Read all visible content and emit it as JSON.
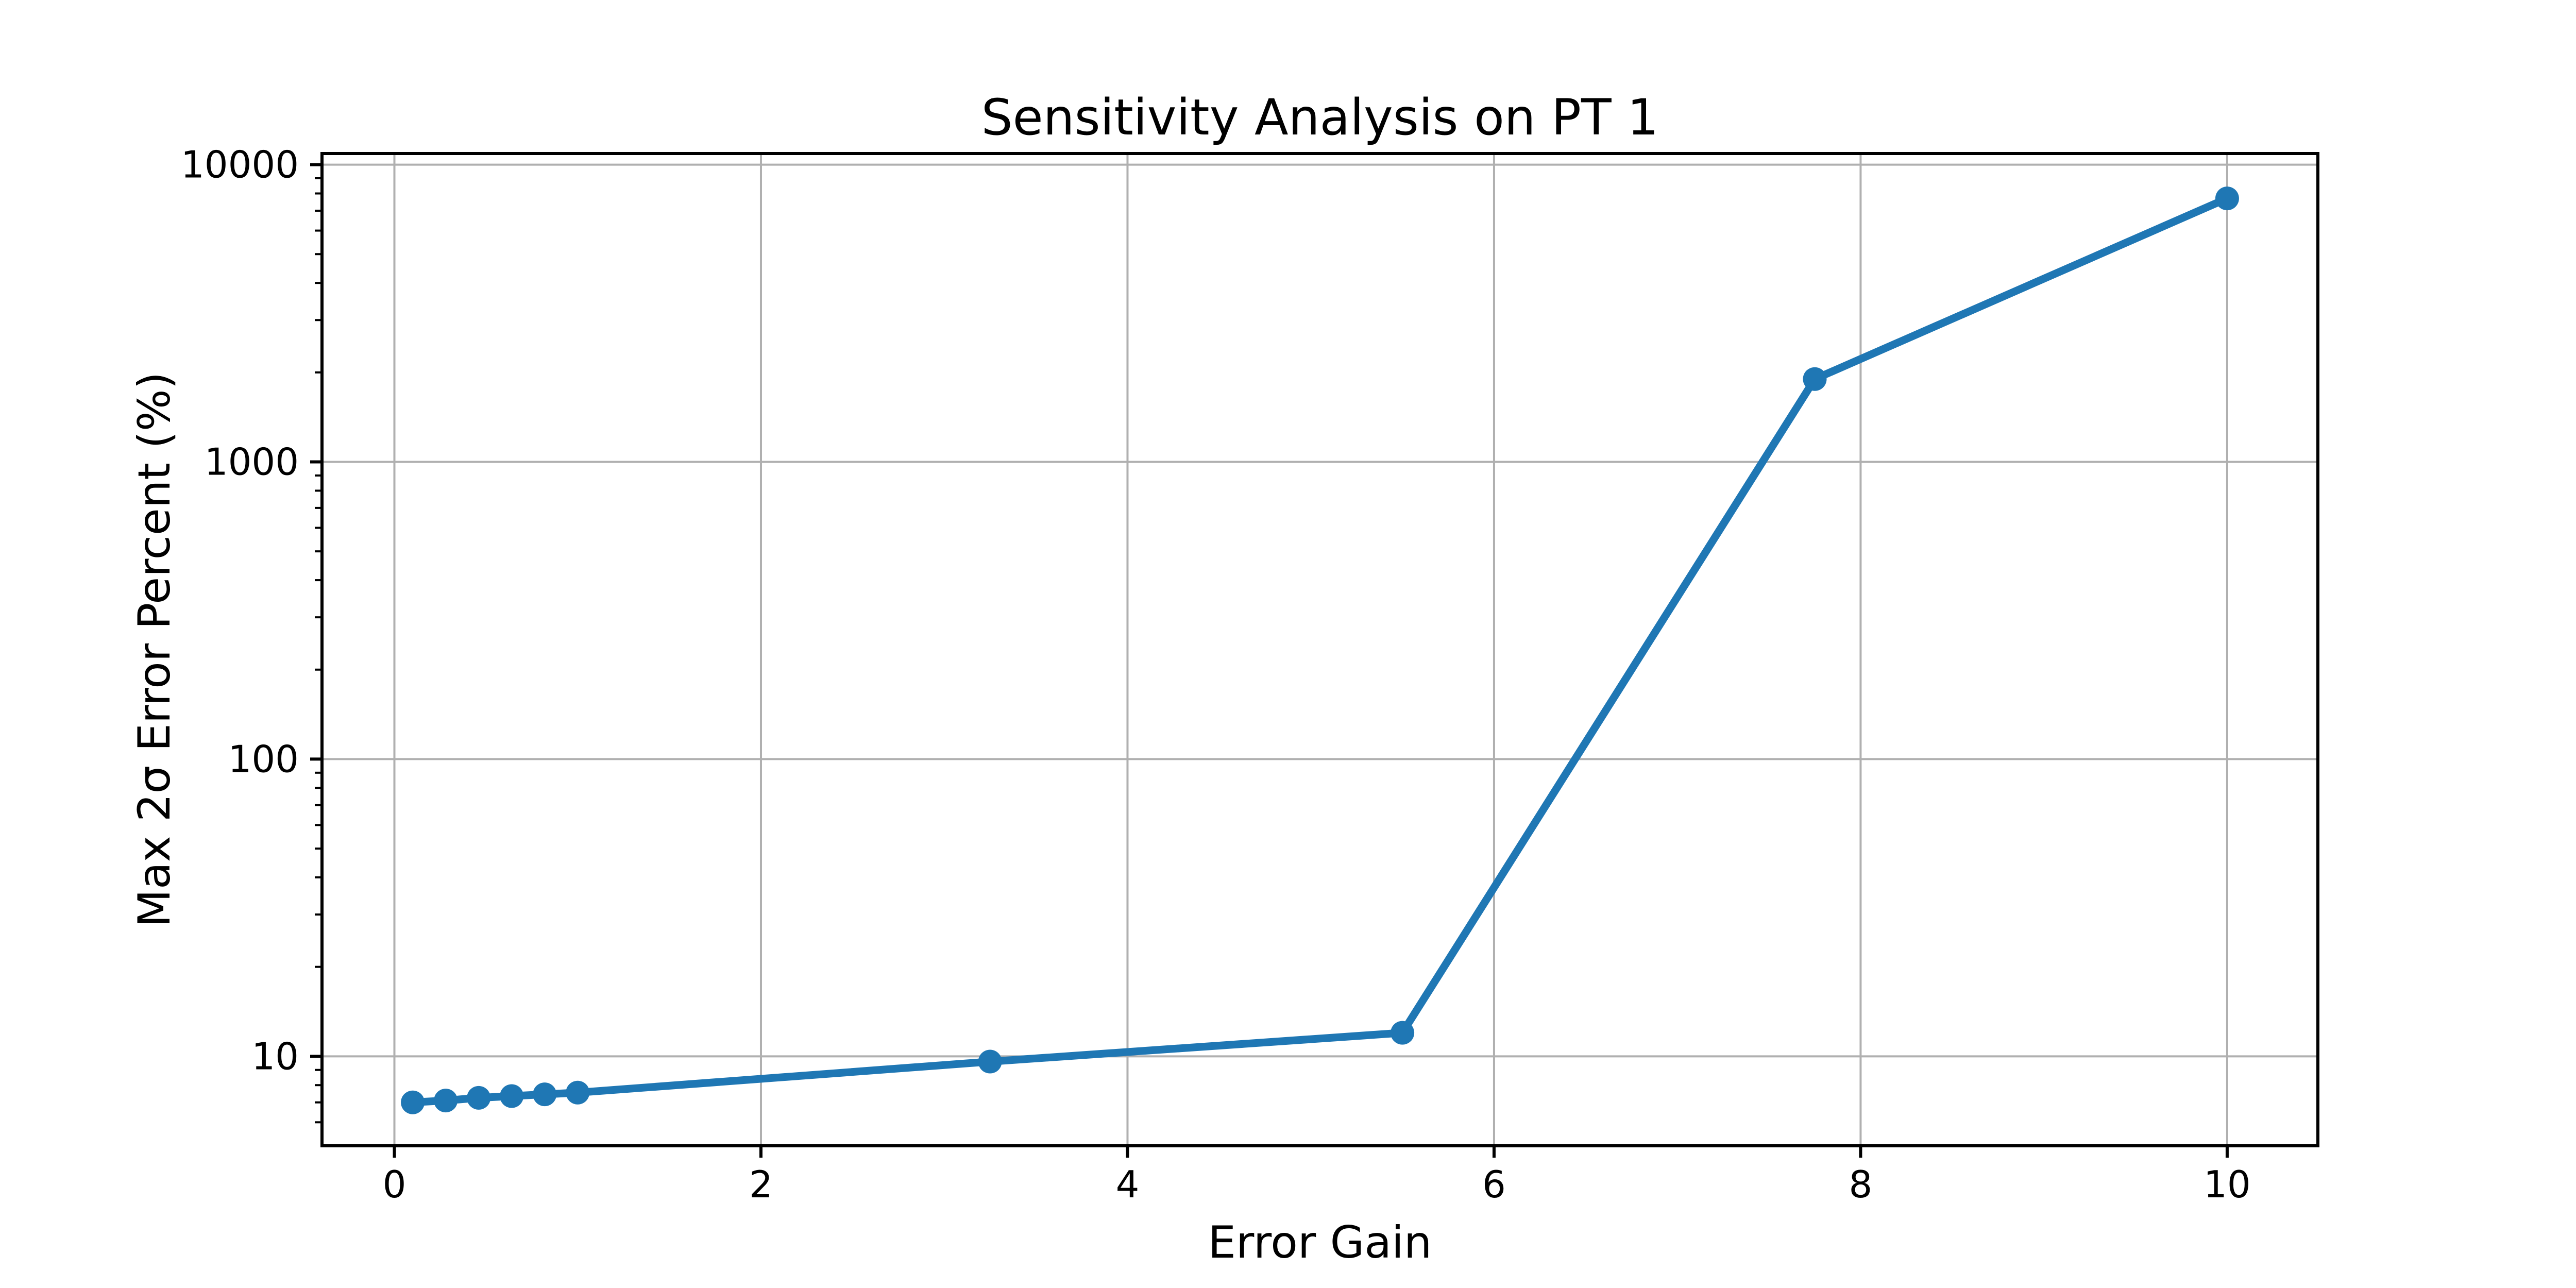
{
  "chart_data": {
    "type": "line",
    "title": "Sensitivity Analysis on PT 1",
    "xlabel": "Error Gain",
    "ylabel": "Max 2σ Error Percent (%)",
    "x": [
      0.1,
      0.28,
      0.46,
      0.64,
      0.82,
      1.0,
      3.25,
      5.5,
      7.75,
      10.0
    ],
    "y": [
      7.0,
      7.1,
      7.25,
      7.35,
      7.45,
      7.55,
      9.6,
      12.0,
      1900,
      7700
    ],
    "x_ticks": [
      0,
      2,
      4,
      6,
      8,
      10
    ],
    "x_tick_labels": [
      "0",
      "2",
      "4",
      "6",
      "8",
      "10"
    ],
    "y_ticks": [
      10,
      100,
      1000,
      10000
    ],
    "y_tick_labels": [
      "10",
      "100",
      "1000",
      "10000"
    ],
    "y_scale": "log",
    "x_scale": "linear",
    "xlim": [
      -0.395,
      10.495
    ],
    "ylim": [
      5.0,
      10900
    ],
    "grid": true,
    "legend": "none",
    "line_color": "#1f77b4",
    "marker": "o",
    "grid_color": "#b0b0b0",
    "spine_color": "#000000",
    "text_color": "#000000",
    "background_color": "#ffffff"
  }
}
